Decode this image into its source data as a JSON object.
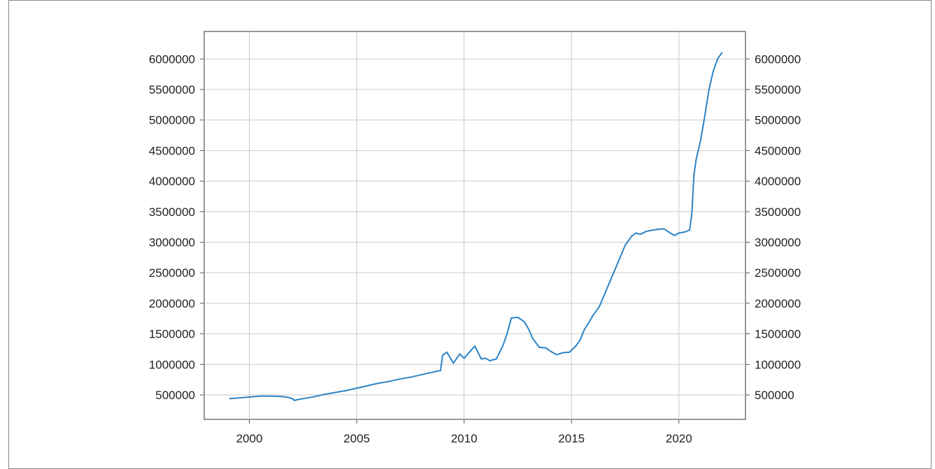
{
  "chart_data": {
    "type": "line",
    "title": "",
    "xlabel": "",
    "ylabel": "",
    "xlim": [
      1997.9,
      2023.1
    ],
    "ylim": [
      100000,
      6450000
    ],
    "x_ticks": [
      2000,
      2005,
      2010,
      2015,
      2020
    ],
    "y_ticks": [
      500000,
      1000000,
      1500000,
      2000000,
      2500000,
      3000000,
      3500000,
      4000000,
      4500000,
      5000000,
      5500000,
      6000000
    ],
    "x_tick_labels": [
      "2000",
      "2005",
      "2010",
      "2015",
      "2020"
    ],
    "y_tick_labels": [
      "500000",
      "1000000",
      "1500000",
      "2000000",
      "2500000",
      "3000000",
      "3500000",
      "4000000",
      "4500000",
      "5000000",
      "5500000",
      "6000000"
    ],
    "grid": true,
    "legend": "none",
    "series": [
      {
        "color": "#2b83c6",
        "x": [
          1999.1,
          1999.5,
          1999.8,
          2000.1,
          2000.5,
          2001.0,
          2001.5,
          2001.8,
          2002.0,
          2002.1,
          2002.2,
          2002.5,
          2003.0,
          2003.5,
          2004.0,
          2004.5,
          2005.0,
          2005.5,
          2006.0,
          2006.5,
          2007.0,
          2007.5,
          2008.0,
          2008.5,
          2008.9,
          2009.0,
          2009.2,
          2009.5,
          2009.8,
          2010.0,
          2010.2,
          2010.5,
          2010.8,
          2011.0,
          2011.2,
          2011.5,
          2011.8,
          2012.0,
          2012.2,
          2012.5,
          2012.8,
          2013.0,
          2013.2,
          2013.5,
          2013.8,
          2014.0,
          2014.3,
          2014.6,
          2014.9,
          2015.0,
          2015.2,
          2015.4,
          2015.6,
          2015.8,
          2016.0,
          2016.3,
          2016.6,
          2016.9,
          2017.2,
          2017.5,
          2017.8,
          2018.0,
          2018.2,
          2018.5,
          2018.8,
          2019.0,
          2019.3,
          2019.6,
          2019.8,
          2020.0,
          2020.3,
          2020.5,
          2020.6,
          2020.7,
          2020.8,
          2021.0,
          2021.2,
          2021.4,
          2021.6,
          2021.8,
          2022.0
        ],
        "values": [
          440000,
          450000,
          460000,
          470000,
          480000,
          480000,
          475000,
          460000,
          440000,
          410000,
          420000,
          440000,
          470000,
          510000,
          540000,
          570000,
          610000,
          650000,
          690000,
          720000,
          760000,
          790000,
          830000,
          870000,
          900000,
          1150000,
          1200000,
          1020000,
          1170000,
          1100000,
          1180000,
          1300000,
          1090000,
          1100000,
          1060000,
          1090000,
          1300000,
          1500000,
          1760000,
          1770000,
          1700000,
          1580000,
          1420000,
          1280000,
          1270000,
          1220000,
          1160000,
          1190000,
          1200000,
          1230000,
          1300000,
          1400000,
          1570000,
          1680000,
          1800000,
          1950000,
          2200000,
          2450000,
          2700000,
          2950000,
          3100000,
          3150000,
          3130000,
          3180000,
          3200000,
          3210000,
          3220000,
          3150000,
          3110000,
          3150000,
          3170000,
          3200000,
          3450000,
          4100000,
          4350000,
          4650000,
          5050000,
          5500000,
          5800000,
          6000000,
          6100000
        ]
      }
    ]
  }
}
